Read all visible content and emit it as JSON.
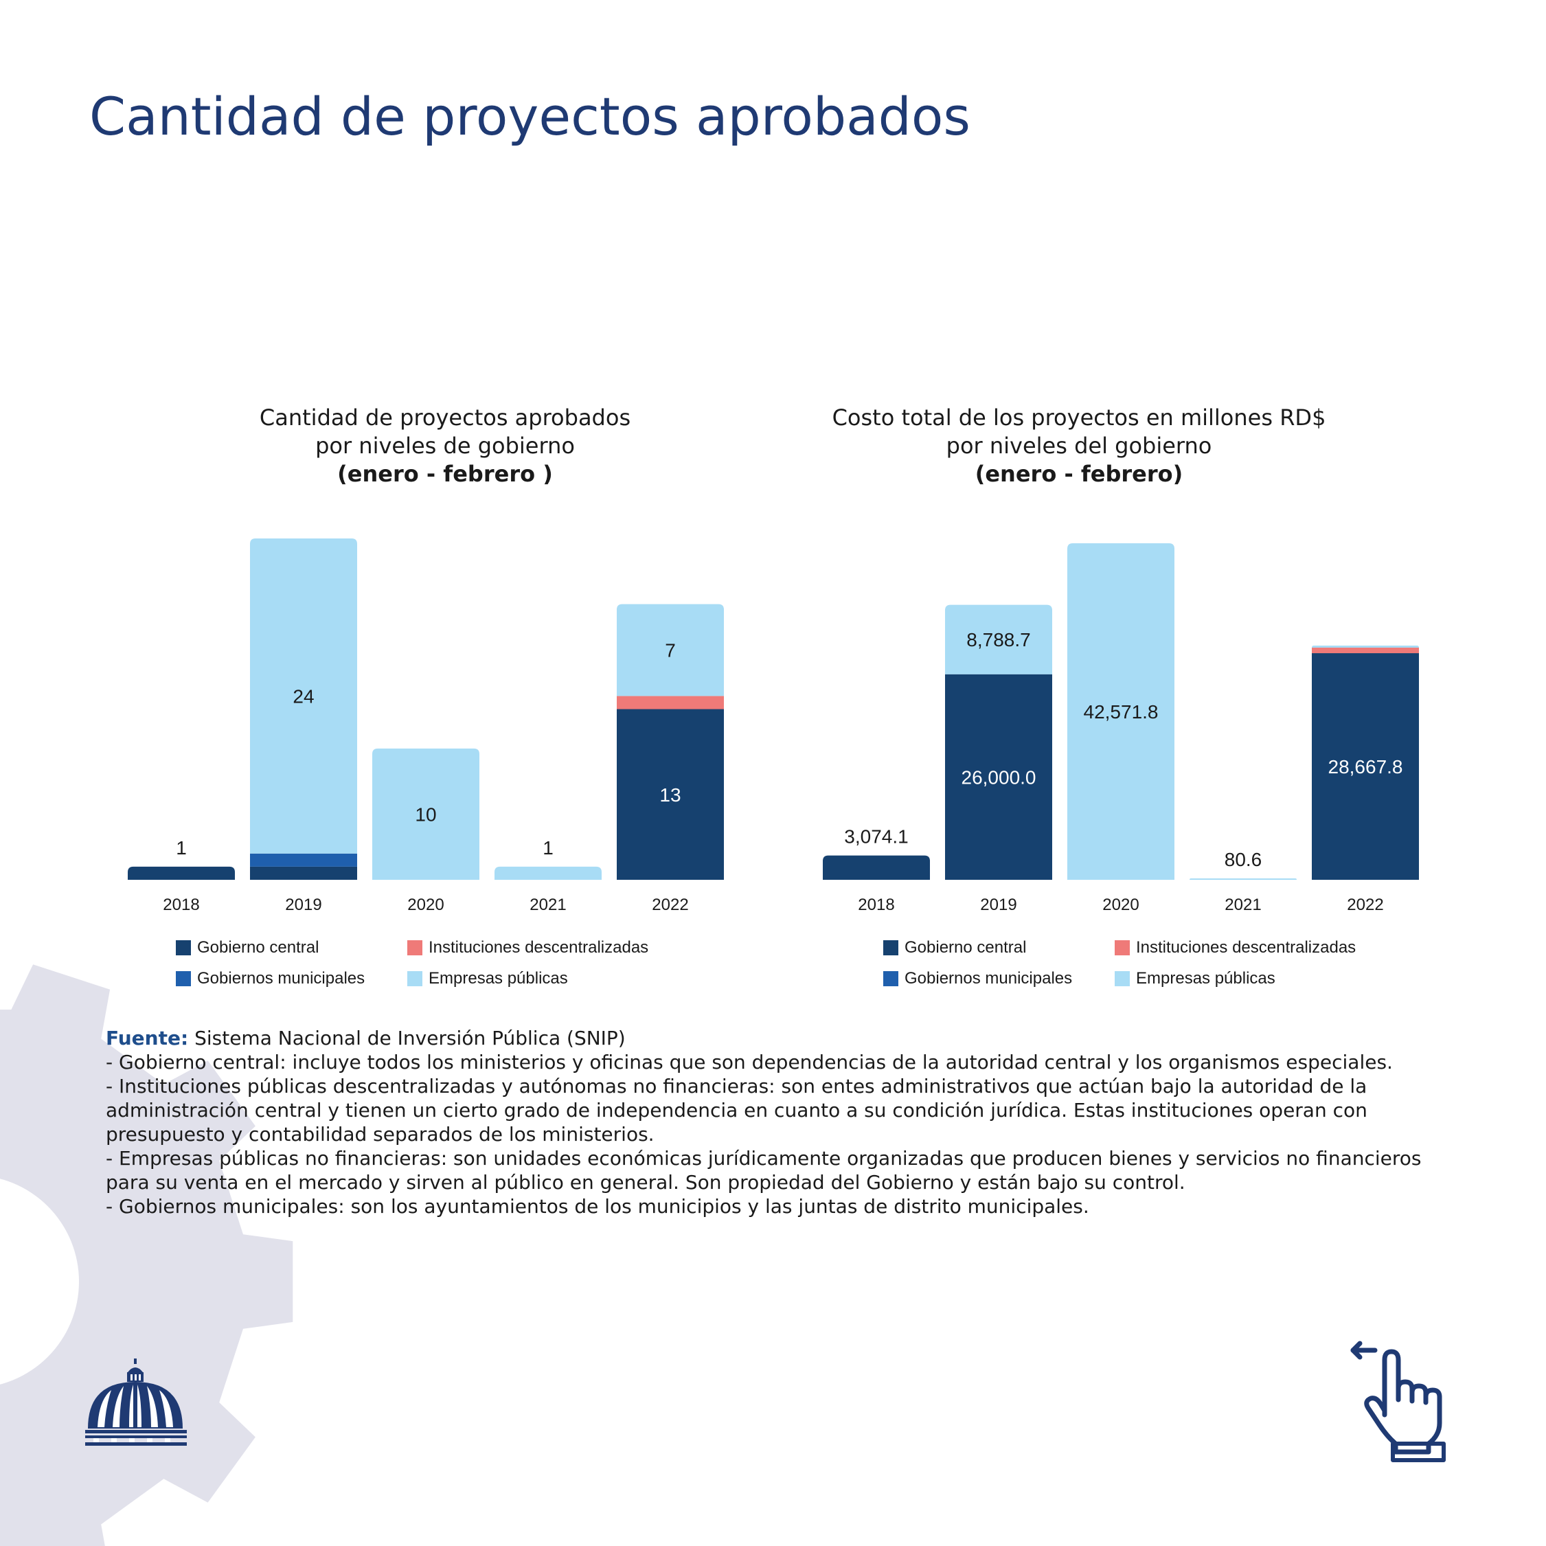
{
  "page_title": "Cantidad de proyectos aprobados",
  "colors": {
    "gobierno_central": "#16416f",
    "gobiernos_municipales": "#1f5fad",
    "instituciones_descentralizadas": "#ef7a78",
    "empresas_publicas": "#a8dcf5",
    "title": "#1f3a73",
    "gear": "#e1e1eb"
  },
  "legend": [
    {
      "key": "gobierno_central",
      "label": "Gobierno central"
    },
    {
      "key": "instituciones_descentralizadas",
      "label": "Instituciones descentralizadas"
    },
    {
      "key": "gobiernos_municipales",
      "label": "Gobiernos municipales"
    },
    {
      "key": "empresas_publicas",
      "label": "Empresas públicas"
    }
  ],
  "chart_data": [
    {
      "type": "bar",
      "stacked": true,
      "title_lines": [
        "Cantidad de proyectos aprobados",
        "por niveles de gobierno"
      ],
      "subtitle": "(enero - febrero )",
      "categories": [
        "2018",
        "2019",
        "2020",
        "2021",
        "2022"
      ],
      "series": [
        {
          "name": "Gobierno central",
          "key": "gobierno_central",
          "values": [
            1,
            1,
            0,
            0,
            13
          ]
        },
        {
          "name": "Gobiernos municipales",
          "key": "gobiernos_municipales",
          "values": [
            0,
            1,
            0,
            0,
            0
          ]
        },
        {
          "name": "Instituciones descentralizadas",
          "key": "instituciones_descentralizadas",
          "values": [
            0,
            0,
            0,
            0,
            1
          ]
        },
        {
          "name": "Empresas públicas",
          "key": "empresas_publicas",
          "values": [
            0,
            24,
            10,
            1,
            7
          ]
        }
      ],
      "data_labels": [
        {
          "category": "2018",
          "series": "gobierno_central",
          "text": "1",
          "position": "above"
        },
        {
          "category": "2019",
          "series": "empresas_publicas",
          "text": "24",
          "position": "inside"
        },
        {
          "category": "2020",
          "series": "empresas_publicas",
          "text": "10",
          "position": "inside"
        },
        {
          "category": "2021",
          "series": "empresas_publicas",
          "text": "1",
          "position": "above"
        },
        {
          "category": "2022",
          "series": "gobierno_central",
          "text": "13",
          "position": "inside"
        },
        {
          "category": "2022",
          "series": "empresas_publicas",
          "text": "7",
          "position": "inside"
        }
      ],
      "ylim": [
        0,
        26
      ],
      "grid": false,
      "legend_position": "bottom"
    },
    {
      "type": "bar",
      "stacked": true,
      "title_lines": [
        "Costo total de los proyectos en millones RD$",
        "por niveles del gobierno"
      ],
      "subtitle": "(enero - febrero)",
      "categories": [
        "2018",
        "2019",
        "2020",
        "2021",
        "2022"
      ],
      "series": [
        {
          "name": "Gobierno central",
          "key": "gobierno_central",
          "values": [
            3074.1,
            26000.0,
            0,
            0,
            28667.8
          ]
        },
        {
          "name": "Gobiernos municipales",
          "key": "gobiernos_municipales",
          "values": [
            0,
            0,
            0,
            0,
            0
          ]
        },
        {
          "name": "Instituciones descentralizadas",
          "key": "instituciones_descentralizadas",
          "values": [
            0,
            0,
            0,
            0,
            700
          ]
        },
        {
          "name": "Empresas públicas",
          "key": "empresas_publicas",
          "values": [
            0,
            8788.7,
            42571.8,
            80.6,
            260
          ]
        }
      ],
      "data_labels": [
        {
          "category": "2018",
          "series": "gobierno_central",
          "text": "3,074.1",
          "position": "above"
        },
        {
          "category": "2019",
          "series": "gobierno_central",
          "text": "26,000.0",
          "position": "inside"
        },
        {
          "category": "2019",
          "series": "empresas_publicas",
          "text": "8,788.7",
          "position": "inside"
        },
        {
          "category": "2020",
          "series": "empresas_publicas",
          "text": "42,571.8",
          "position": "inside"
        },
        {
          "category": "2021",
          "series": "empresas_publicas",
          "text": "80.6",
          "position": "above"
        },
        {
          "category": "2022",
          "series": "gobierno_central",
          "text": "28,667.8",
          "position": "inside"
        }
      ],
      "ylim": [
        0,
        42571.8
      ],
      "grid": false,
      "legend_position": "bottom"
    }
  ],
  "notes": {
    "source_label": "Fuente:",
    "source_text": " Sistema Nacional de Inversión Pública (SNIP)",
    "lines": [
      "- Gobierno central: incluye todos los ministerios y oficinas que son dependencias de la autoridad central y los organismos especiales.",
      "- Instituciones públicas descentralizadas y autónomas no financieras: son entes administrativos que actúan bajo la autoridad de la administración central y tienen un cierto grado de independencia en cuanto a su condición jurídica. Estas instituciones operan con presupuesto y contabilidad separados de los ministerios.",
      "- Empresas públicas no financieras: son unidades económicas jurídicamente organizadas que producen bienes y servicios no financieros para su venta en el mercado y sirven al público en general. Son propiedad del Gobierno y están bajo su control.",
      "- Gobiernos municipales: son los ayuntamientos de los municipios y las juntas de distrito municipales."
    ]
  }
}
